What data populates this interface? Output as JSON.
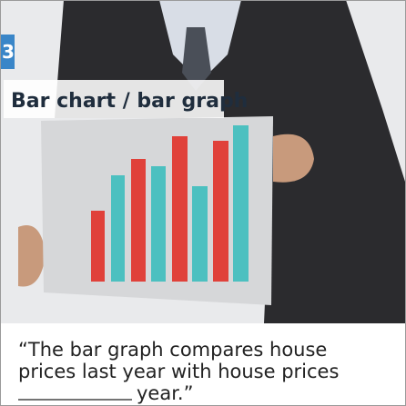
{
  "badge": "3",
  "heading": "Bar chart / bar graph",
  "caption": {
    "lines": [
      "“The bar graph compares house",
      "prices last year with house prices"
    ],
    "last_line_end": "year.”"
  }
}
